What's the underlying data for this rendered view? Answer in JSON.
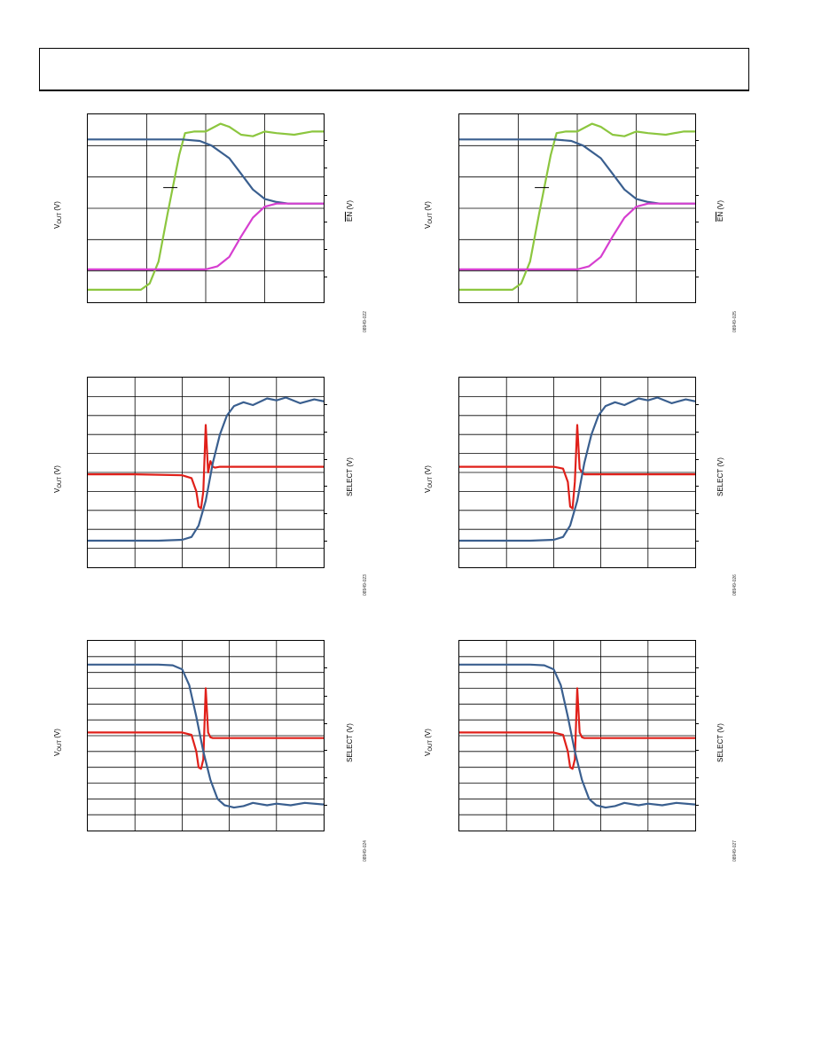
{
  "header": {
    "text": ""
  },
  "colors": {
    "blue": "#3a5f8f",
    "green": "#8cc63f",
    "magenta": "#d63fd0",
    "red": "#e0201a",
    "grid": "#000000"
  },
  "chart_data": [
    {
      "type": "line",
      "panel": "top-left",
      "xlabel": "",
      "ylabel_left": "V",
      "ylabel_left_sub": "OUT",
      "ylabel_left_unit": " (V)",
      "ylabel_right_over": "EN",
      "ylabel_right_unit": " (V)",
      "figure_id": "08949-022",
      "grid": {
        "vlines": 4,
        "hlines": 6
      },
      "ylim": [
        0,
        6
      ],
      "xlim": [
        0,
        4
      ],
      "series": [
        {
          "color": "green",
          "x": [
            0,
            0.9,
            1.05,
            1.2,
            1.35,
            1.55,
            1.65,
            1.8,
            2.0,
            2.25,
            2.4,
            2.6,
            2.8,
            3.0,
            3.2,
            3.5,
            3.8,
            4.0
          ],
          "y": [
            0.4,
            0.4,
            0.6,
            1.3,
            2.8,
            4.7,
            5.4,
            5.45,
            5.45,
            5.7,
            5.6,
            5.35,
            5.3,
            5.45,
            5.4,
            5.35,
            5.45,
            5.45
          ]
        },
        {
          "color": "blue",
          "x": [
            0,
            1.0,
            1.6,
            1.9,
            2.1,
            2.4,
            2.6,
            2.8,
            3.0,
            3.2,
            3.4,
            3.6,
            4.0
          ],
          "y": [
            5.2,
            5.2,
            5.2,
            5.15,
            5.0,
            4.6,
            4.1,
            3.6,
            3.3,
            3.2,
            3.15,
            3.15,
            3.15
          ]
        },
        {
          "color": "magenta",
          "x": [
            0,
            1.5,
            2.0,
            2.2,
            2.4,
            2.6,
            2.8,
            3.0,
            3.2,
            3.5,
            4.0
          ],
          "y": [
            1.05,
            1.05,
            1.05,
            1.15,
            1.45,
            2.1,
            2.7,
            3.05,
            3.15,
            3.15,
            3.15
          ]
        }
      ],
      "annotation_dash": true
    },
    {
      "type": "line",
      "panel": "top-right",
      "ylabel_left": "V",
      "ylabel_left_sub": "OUT",
      "ylabel_left_unit": " (V)",
      "ylabel_right_over": "EN",
      "ylabel_right_unit": " (V)",
      "figure_id": "08949-025",
      "grid": {
        "vlines": 4,
        "hlines": 6
      },
      "ylim": [
        0,
        6
      ],
      "xlim": [
        0,
        4
      ],
      "series": [
        {
          "color": "green",
          "x": [
            0,
            0.9,
            1.05,
            1.2,
            1.35,
            1.55,
            1.65,
            1.8,
            2.0,
            2.25,
            2.4,
            2.6,
            2.8,
            3.0,
            3.2,
            3.5,
            3.8,
            4.0
          ],
          "y": [
            0.4,
            0.4,
            0.6,
            1.3,
            2.8,
            4.7,
            5.4,
            5.45,
            5.45,
            5.7,
            5.6,
            5.35,
            5.3,
            5.45,
            5.4,
            5.35,
            5.45,
            5.45
          ]
        },
        {
          "color": "blue",
          "x": [
            0,
            1.0,
            1.6,
            1.9,
            2.1,
            2.4,
            2.6,
            2.8,
            3.0,
            3.2,
            3.4,
            3.6,
            4.0
          ],
          "y": [
            5.2,
            5.2,
            5.2,
            5.15,
            5.0,
            4.6,
            4.1,
            3.6,
            3.3,
            3.2,
            3.15,
            3.15,
            3.15
          ]
        },
        {
          "color": "magenta",
          "x": [
            0,
            1.5,
            2.0,
            2.2,
            2.4,
            2.6,
            2.8,
            3.0,
            3.2,
            3.5,
            4.0
          ],
          "y": [
            1.05,
            1.05,
            1.05,
            1.15,
            1.45,
            2.1,
            2.7,
            3.05,
            3.15,
            3.15,
            3.15
          ]
        }
      ],
      "annotation_dash": true
    },
    {
      "type": "line",
      "panel": "mid-left",
      "ylabel_left": "V",
      "ylabel_left_sub": "OUT",
      "ylabel_left_unit": " (V)",
      "ylabel_right_text": "SELECT (V)",
      "figure_id": "08949-023",
      "grid": {
        "vlines": 5,
        "hlines": 10
      },
      "ylim": [
        0,
        10
      ],
      "xlim": [
        0,
        5
      ],
      "series": [
        {
          "color": "red",
          "x": [
            0,
            1.0,
            2.0,
            2.2,
            2.3,
            2.35,
            2.4,
            2.45,
            2.5,
            2.55,
            2.6,
            2.65,
            2.7,
            2.8,
            3.0,
            4.0,
            5.0
          ],
          "y": [
            4.9,
            4.9,
            4.85,
            4.7,
            4.0,
            3.2,
            3.1,
            4.0,
            7.5,
            5.0,
            5.6,
            5.3,
            5.25,
            5.3,
            5.3,
            5.3,
            5.3
          ]
        },
        {
          "color": "blue",
          "x": [
            0,
            1.5,
            2.0,
            2.2,
            2.35,
            2.5,
            2.65,
            2.8,
            2.95,
            3.1,
            3.3,
            3.5,
            3.8,
            4.0,
            4.2,
            4.5,
            4.8,
            5.0
          ],
          "y": [
            1.4,
            1.4,
            1.45,
            1.6,
            2.2,
            3.5,
            5.5,
            7.0,
            8.0,
            8.5,
            8.7,
            8.55,
            8.9,
            8.8,
            8.95,
            8.65,
            8.85,
            8.75
          ]
        }
      ]
    },
    {
      "type": "line",
      "panel": "mid-right",
      "ylabel_left": "V",
      "ylabel_left_sub": "OUT",
      "ylabel_left_unit": " (V)",
      "ylabel_right_text": "SELECT (V)",
      "figure_id": "08949-026",
      "grid": {
        "vlines": 5,
        "hlines": 10
      },
      "ylim": [
        0,
        10
      ],
      "xlim": [
        0,
        5
      ],
      "series": [
        {
          "color": "red",
          "x": [
            0,
            1.0,
            2.0,
            2.2,
            2.3,
            2.35,
            2.4,
            2.45,
            2.5,
            2.55,
            2.6,
            2.65,
            2.7,
            2.8,
            3.0,
            4.0,
            5.0
          ],
          "y": [
            5.3,
            5.3,
            5.3,
            5.2,
            4.5,
            3.2,
            3.1,
            4.5,
            7.5,
            5.2,
            5.0,
            4.9,
            4.9,
            4.9,
            4.9,
            4.9,
            4.9
          ]
        },
        {
          "color": "blue",
          "x": [
            0,
            1.5,
            2.0,
            2.2,
            2.35,
            2.5,
            2.65,
            2.8,
            2.95,
            3.1,
            3.3,
            3.5,
            3.8,
            4.0,
            4.2,
            4.5,
            4.8,
            5.0
          ],
          "y": [
            1.4,
            1.4,
            1.45,
            1.6,
            2.2,
            3.5,
            5.5,
            7.0,
            8.0,
            8.5,
            8.7,
            8.55,
            8.9,
            8.8,
            8.95,
            8.65,
            8.85,
            8.75
          ]
        }
      ]
    },
    {
      "type": "line",
      "panel": "bottom-left",
      "ylabel_left": "V",
      "ylabel_left_sub": "OUT",
      "ylabel_left_unit": " (V)",
      "ylabel_right_text": "SELECT (V)",
      "figure_id": "08949-024",
      "grid": {
        "vlines": 5,
        "hlines": 12
      },
      "ylim": [
        0,
        12
      ],
      "xlim": [
        0,
        5
      ],
      "series": [
        {
          "color": "red",
          "x": [
            0,
            1.0,
            2.0,
            2.2,
            2.3,
            2.35,
            2.4,
            2.45,
            2.5,
            2.55,
            2.6,
            2.65,
            2.7,
            2.8,
            3.0,
            4.0,
            5.0
          ],
          "y": [
            6.2,
            6.2,
            6.2,
            6.05,
            5.0,
            4.0,
            3.9,
            4.5,
            9.0,
            6.2,
            5.9,
            5.85,
            5.85,
            5.85,
            5.85,
            5.85,
            5.85
          ]
        },
        {
          "color": "blue",
          "x": [
            0,
            1.5,
            1.8,
            2.0,
            2.15,
            2.3,
            2.45,
            2.6,
            2.75,
            2.9,
            3.1,
            3.3,
            3.5,
            3.8,
            4.0,
            4.3,
            4.6,
            5.0
          ],
          "y": [
            10.5,
            10.5,
            10.45,
            10.2,
            9.2,
            7.2,
            5.0,
            3.2,
            2.0,
            1.6,
            1.45,
            1.55,
            1.75,
            1.6,
            1.7,
            1.6,
            1.75,
            1.65
          ]
        }
      ]
    },
    {
      "type": "line",
      "panel": "bottom-right",
      "ylabel_left": "V",
      "ylabel_left_sub": "OUT",
      "ylabel_left_unit": " (V)",
      "ylabel_right_text": "SELECT (V)",
      "figure_id": "08949-027",
      "grid": {
        "vlines": 5,
        "hlines": 12
      },
      "ylim": [
        0,
        12
      ],
      "xlim": [
        0,
        5
      ],
      "series": [
        {
          "color": "red",
          "x": [
            0,
            1.0,
            2.0,
            2.2,
            2.3,
            2.35,
            2.4,
            2.45,
            2.5,
            2.55,
            2.6,
            2.65,
            2.7,
            2.8,
            3.0,
            4.0,
            5.0
          ],
          "y": [
            6.2,
            6.2,
            6.2,
            6.05,
            5.0,
            4.0,
            3.9,
            4.5,
            9.0,
            6.2,
            5.9,
            5.85,
            5.85,
            5.85,
            5.85,
            5.85,
            5.85
          ]
        },
        {
          "color": "blue",
          "x": [
            0,
            1.5,
            1.8,
            2.0,
            2.15,
            2.3,
            2.45,
            2.6,
            2.75,
            2.9,
            3.1,
            3.3,
            3.5,
            3.8,
            4.0,
            4.3,
            4.6,
            5.0
          ],
          "y": [
            10.5,
            10.5,
            10.45,
            10.2,
            9.2,
            7.2,
            5.0,
            3.2,
            2.0,
            1.6,
            1.45,
            1.55,
            1.75,
            1.6,
            1.7,
            1.6,
            1.75,
            1.65
          ]
        }
      ]
    }
  ]
}
